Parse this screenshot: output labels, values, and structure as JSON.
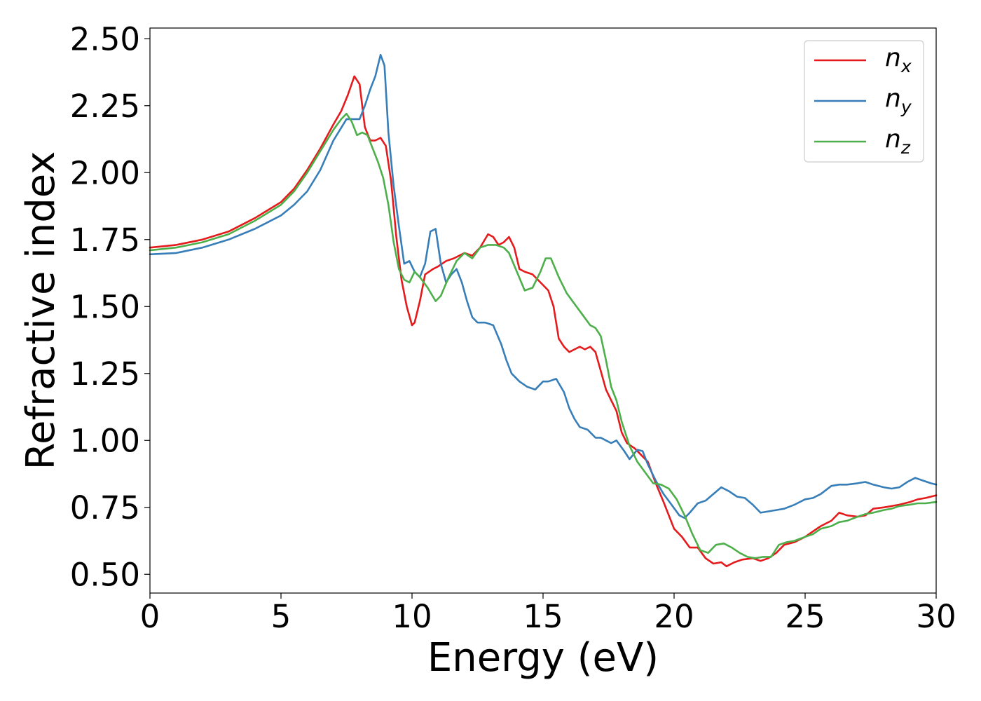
{
  "chart_data": {
    "type": "line",
    "xlabel": "Energy (eV)",
    "ylabel": "Refractive index",
    "xlim": [
      0,
      30
    ],
    "ylim": [
      0.43,
      2.54
    ],
    "xticks": [
      0,
      5,
      10,
      15,
      20,
      25,
      30
    ],
    "xtick_labels": [
      "0",
      "5",
      "10",
      "15",
      "20",
      "25",
      "30"
    ],
    "yticks": [
      0.5,
      0.75,
      1.0,
      1.25,
      1.5,
      1.75,
      2.0,
      2.25,
      2.5
    ],
    "ytick_labels": [
      "0.50",
      "0.75",
      "1.00",
      "1.25",
      "1.50",
      "1.75",
      "2.00",
      "2.25",
      "2.50"
    ],
    "grid": false,
    "legend_position": "top-right",
    "series": [
      {
        "name": "n_x",
        "label_base": "n",
        "label_sub": "x",
        "color": "#e41a1c",
        "x": [
          0,
          1,
          2,
          3,
          4,
          5,
          5.5,
          6,
          6.5,
          7,
          7.3,
          7.55,
          7.8,
          8,
          8.2,
          8.4,
          8.6,
          8.8,
          9,
          9.2,
          9.4,
          9.6,
          9.8,
          10,
          10.1,
          10.3,
          10.5,
          10.8,
          11,
          11.3,
          11.6,
          12,
          12.3,
          12.6,
          12.9,
          13.1,
          13.3,
          13.5,
          13.7,
          13.9,
          14.1,
          14.3,
          14.6,
          14.9,
          15.2,
          15.4,
          15.6,
          15.8,
          16,
          16.2,
          16.4,
          16.6,
          16.8,
          17,
          17.2,
          17.4,
          17.6,
          17.8,
          18,
          18.2,
          18.5,
          18.8,
          19,
          19.3,
          19.6,
          20,
          20.3,
          20.6,
          20.9,
          21.2,
          21.5,
          21.8,
          22,
          22.3,
          22.6,
          23,
          23.3,
          23.6,
          23.9,
          24.2,
          24.6,
          25,
          25.3,
          25.6,
          26,
          26.3,
          26.6,
          27,
          27.3,
          27.6,
          28,
          28.3,
          28.6,
          29,
          29.3,
          29.6,
          30
        ],
        "y": [
          1.72,
          1.73,
          1.75,
          1.78,
          1.83,
          1.89,
          1.94,
          2.01,
          2.09,
          2.18,
          2.23,
          2.29,
          2.36,
          2.33,
          2.17,
          2.12,
          2.12,
          2.13,
          2.1,
          1.97,
          1.76,
          1.6,
          1.5,
          1.43,
          1.44,
          1.52,
          1.62,
          1.64,
          1.65,
          1.67,
          1.68,
          1.7,
          1.69,
          1.72,
          1.77,
          1.76,
          1.73,
          1.74,
          1.76,
          1.72,
          1.64,
          1.63,
          1.62,
          1.59,
          1.56,
          1.5,
          1.38,
          1.35,
          1.33,
          1.34,
          1.35,
          1.34,
          1.35,
          1.33,
          1.26,
          1.19,
          1.15,
          1.11,
          1.03,
          0.99,
          0.97,
          0.94,
          0.92,
          0.84,
          0.77,
          0.67,
          0.64,
          0.6,
          0.6,
          0.56,
          0.54,
          0.545,
          0.53,
          0.545,
          0.555,
          0.56,
          0.55,
          0.56,
          0.58,
          0.61,
          0.62,
          0.64,
          0.66,
          0.68,
          0.7,
          0.73,
          0.72,
          0.715,
          0.72,
          0.745,
          0.75,
          0.755,
          0.76,
          0.77,
          0.78,
          0.785,
          0.795
        ]
      },
      {
        "name": "n_y",
        "label_base": "n",
        "label_sub": "y",
        "color": "#377eb8",
        "x": [
          0,
          1,
          2,
          3,
          4,
          5,
          5.5,
          6,
          6.5,
          7,
          7.5,
          7.7,
          8,
          8.2,
          8.4,
          8.6,
          8.8,
          8.95,
          9.1,
          9.3,
          9.5,
          9.7,
          9.9,
          10.1,
          10.3,
          10.5,
          10.7,
          10.9,
          11.1,
          11.3,
          11.5,
          11.7,
          11.9,
          12.1,
          12.3,
          12.5,
          12.8,
          13.1,
          13.4,
          13.6,
          13.8,
          14.1,
          14.4,
          14.7,
          15,
          15.2,
          15.5,
          15.8,
          16,
          16.2,
          16.4,
          16.7,
          17,
          17.2,
          17.4,
          17.6,
          17.8,
          18.1,
          18.3,
          18.6,
          18.8,
          19,
          19.3,
          19.6,
          19.9,
          20.2,
          20.4,
          20.6,
          20.9,
          21.2,
          21.5,
          21.8,
          22.1,
          22.4,
          22.7,
          23,
          23.3,
          23.6,
          23.9,
          24.2,
          24.6,
          25,
          25.3,
          25.6,
          26,
          26.3,
          26.6,
          27,
          27.3,
          27.6,
          28,
          28.3,
          28.6,
          28.9,
          29.2,
          29.5,
          29.8,
          30
        ],
        "y": [
          1.695,
          1.7,
          1.72,
          1.75,
          1.79,
          1.84,
          1.88,
          1.93,
          2.01,
          2.12,
          2.2,
          2.2,
          2.2,
          2.25,
          2.31,
          2.36,
          2.44,
          2.4,
          2.15,
          1.95,
          1.8,
          1.66,
          1.67,
          1.63,
          1.61,
          1.66,
          1.78,
          1.79,
          1.66,
          1.59,
          1.62,
          1.64,
          1.59,
          1.52,
          1.46,
          1.44,
          1.44,
          1.43,
          1.36,
          1.3,
          1.25,
          1.22,
          1.2,
          1.19,
          1.22,
          1.22,
          1.23,
          1.18,
          1.12,
          1.08,
          1.05,
          1.04,
          1.01,
          1.01,
          1.0,
          0.99,
          1.0,
          0.96,
          0.93,
          0.965,
          0.96,
          0.91,
          0.85,
          0.8,
          0.76,
          0.72,
          0.71,
          0.73,
          0.765,
          0.775,
          0.8,
          0.825,
          0.81,
          0.79,
          0.785,
          0.76,
          0.73,
          0.735,
          0.74,
          0.745,
          0.76,
          0.78,
          0.785,
          0.8,
          0.83,
          0.835,
          0.835,
          0.84,
          0.845,
          0.835,
          0.825,
          0.82,
          0.825,
          0.845,
          0.86,
          0.85,
          0.84,
          0.835
        ]
      },
      {
        "name": "n_z",
        "label_base": "n",
        "label_sub": "z",
        "color": "#4daf4a",
        "x": [
          0,
          1,
          2,
          3,
          4,
          5,
          5.5,
          6,
          6.5,
          7,
          7.3,
          7.5,
          7.7,
          7.9,
          8.1,
          8.3,
          8.5,
          8.7,
          8.9,
          9.1,
          9.3,
          9.5,
          9.7,
          9.9,
          10.1,
          10.3,
          10.6,
          10.9,
          11.1,
          11.4,
          11.7,
          12,
          12.3,
          12.6,
          12.9,
          13.2,
          13.5,
          13.7,
          14,
          14.3,
          14.6,
          14.9,
          15.1,
          15.3,
          15.6,
          15.9,
          16.2,
          16.5,
          16.8,
          17,
          17.2,
          17.4,
          17.6,
          17.8,
          18,
          18.3,
          18.6,
          18.9,
          19.2,
          19.5,
          19.8,
          20.1,
          20.4,
          20.7,
          21,
          21.3,
          21.6,
          21.9,
          22.2,
          22.5,
          22.8,
          23.1,
          23.4,
          23.7,
          24,
          24.3,
          24.6,
          25,
          25.3,
          25.6,
          26,
          26.3,
          26.6,
          27,
          27.3,
          27.6,
          28,
          28.3,
          28.6,
          29,
          29.3,
          29.6,
          30
        ],
        "y": [
          1.71,
          1.72,
          1.74,
          1.77,
          1.82,
          1.88,
          1.93,
          2.0,
          2.08,
          2.16,
          2.2,
          2.22,
          2.19,
          2.14,
          2.15,
          2.14,
          2.09,
          2.04,
          1.98,
          1.88,
          1.74,
          1.64,
          1.6,
          1.59,
          1.63,
          1.61,
          1.57,
          1.52,
          1.54,
          1.61,
          1.67,
          1.7,
          1.68,
          1.72,
          1.73,
          1.73,
          1.72,
          1.7,
          1.63,
          1.56,
          1.57,
          1.63,
          1.68,
          1.68,
          1.61,
          1.55,
          1.51,
          1.47,
          1.43,
          1.42,
          1.39,
          1.3,
          1.2,
          1.15,
          1.07,
          0.98,
          0.92,
          0.88,
          0.84,
          0.835,
          0.82,
          0.78,
          0.72,
          0.65,
          0.59,
          0.58,
          0.61,
          0.615,
          0.6,
          0.58,
          0.565,
          0.56,
          0.565,
          0.565,
          0.61,
          0.62,
          0.625,
          0.64,
          0.65,
          0.67,
          0.68,
          0.695,
          0.7,
          0.715,
          0.725,
          0.73,
          0.74,
          0.745,
          0.755,
          0.76,
          0.765,
          0.765,
          0.77
        ]
      }
    ]
  }
}
